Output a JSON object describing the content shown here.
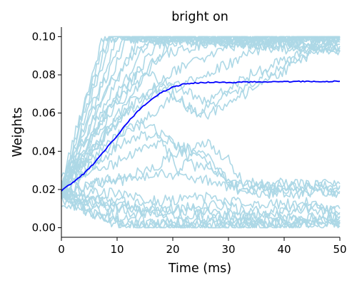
{
  "chart_data": {
    "type": "line",
    "title": "bright on",
    "xlabel": "Time (ms)",
    "ylabel": "Weights",
    "xlim": [
      0,
      50
    ],
    "ylim": [
      -0.005,
      0.105
    ],
    "xticks": [
      0,
      10,
      20,
      30,
      40,
      50
    ],
    "xtick_labels": [
      "0",
      "10",
      "20",
      "30",
      "40",
      "50"
    ],
    "yticks": [
      0.0,
      0.02,
      0.04,
      0.06,
      0.08,
      0.1
    ],
    "ytick_labels": [
      "0.00",
      "0.02",
      "0.04",
      "0.06",
      "0.08",
      "0.10"
    ],
    "grid": false,
    "colors": {
      "individual": "#add8e6",
      "mean": "#0000ff"
    },
    "mean_series": {
      "x": [
        0,
        2,
        4,
        6,
        8,
        10,
        12,
        14,
        16,
        18,
        20,
        22,
        24,
        26,
        28,
        30,
        32,
        34,
        36,
        38,
        40,
        42,
        44,
        46,
        48,
        50
      ],
      "values": [
        0.0195,
        0.0235,
        0.0282,
        0.0342,
        0.0412,
        0.0482,
        0.0555,
        0.0618,
        0.0668,
        0.0708,
        0.0735,
        0.0752,
        0.0758,
        0.076,
        0.0761,
        0.076,
        0.0762,
        0.0763,
        0.0763,
        0.0764,
        0.0764,
        0.0765,
        0.0765,
        0.0765,
        0.0766,
        0.0766
      ]
    },
    "individual_series": [
      {
        "x": [
          0,
          7.5,
          50
        ],
        "values": [
          0.024,
          0.1,
          0.1
        ]
      },
      {
        "x": [
          0,
          8,
          50
        ],
        "values": [
          0.022,
          0.1,
          0.098
        ]
      },
      {
        "x": [
          0,
          8.5,
          50
        ],
        "values": [
          0.021,
          0.1,
          0.096
        ]
      },
      {
        "x": [
          0,
          9,
          50
        ],
        "values": [
          0.02,
          0.1,
          0.094
        ]
      },
      {
        "x": [
          0,
          10,
          50
        ],
        "values": [
          0.019,
          0.1,
          0.092
        ]
      },
      {
        "x": [
          0,
          11,
          50
        ],
        "values": [
          0.021,
          0.1,
          0.1
        ]
      },
      {
        "x": [
          0,
          12,
          50
        ],
        "values": [
          0.018,
          0.1,
          0.095
        ]
      },
      {
        "x": [
          0,
          14,
          50
        ],
        "values": [
          0.02,
          0.1,
          0.097
        ]
      },
      {
        "x": [
          0,
          16,
          50
        ],
        "values": [
          0.019,
          0.1,
          0.093
        ]
      },
      {
        "x": [
          0,
          18,
          50
        ],
        "values": [
          0.022,
          0.1,
          0.099
        ]
      },
      {
        "x": [
          0,
          20,
          50
        ],
        "values": [
          0.017,
          0.1,
          0.1
        ]
      },
      {
        "x": [
          0,
          8,
          14,
          24,
          50
        ],
        "values": [
          0.021,
          0.072,
          0.095,
          0.1,
          0.1
        ]
      },
      {
        "x": [
          0,
          10,
          18,
          30,
          50
        ],
        "values": [
          0.02,
          0.07,
          0.09,
          0.1,
          0.1
        ]
      },
      {
        "x": [
          0,
          12,
          22,
          35,
          50
        ],
        "values": [
          0.019,
          0.065,
          0.085,
          0.1,
          0.1
        ]
      },
      {
        "x": [
          0,
          14,
          26,
          40,
          50
        ],
        "values": [
          0.022,
          0.068,
          0.08,
          0.1,
          0.1
        ]
      },
      {
        "x": [
          0,
          8,
          16,
          26,
          34,
          50
        ],
        "values": [
          0.02,
          0.06,
          0.08,
          0.066,
          0.08,
          0.1
        ]
      },
      {
        "x": [
          0,
          10,
          18,
          24,
          30,
          50
        ],
        "values": [
          0.021,
          0.055,
          0.075,
          0.06,
          0.07,
          0.1
        ]
      },
      {
        "x": [
          0,
          12,
          20,
          26,
          50
        ],
        "values": [
          0.018,
          0.05,
          0.068,
          0.058,
          0.1
        ]
      },
      {
        "x": [
          0,
          10,
          16,
          21,
          24,
          28,
          32,
          50
        ],
        "values": [
          0.019,
          0.05,
          0.056,
          0.03,
          0.04,
          0.028,
          0.022,
          0.022
        ]
      },
      {
        "x": [
          0,
          12,
          18,
          22,
          26,
          30,
          33,
          50
        ],
        "values": [
          0.02,
          0.046,
          0.05,
          0.04,
          0.044,
          0.036,
          0.021,
          0.021
        ]
      },
      {
        "x": [
          0,
          14,
          20,
          24,
          28,
          32,
          50
        ],
        "values": [
          0.021,
          0.04,
          0.046,
          0.032,
          0.03,
          0.019,
          0.019
        ]
      },
      {
        "x": [
          0,
          16,
          22,
          27,
          30,
          34,
          50
        ],
        "values": [
          0.019,
          0.03,
          0.042,
          0.036,
          0.024,
          0.018,
          0.018
        ]
      },
      {
        "x": [
          0,
          18,
          24,
          30,
          33,
          50
        ],
        "values": [
          0.02,
          0.028,
          0.026,
          0.022,
          0.023,
          0.023
        ]
      },
      {
        "x": [
          0,
          6,
          12,
          20,
          30,
          40,
          50
        ],
        "values": [
          0.02,
          0.01,
          0.004,
          0.002,
          0.003,
          0.004,
          0.006
        ]
      },
      {
        "x": [
          0,
          5,
          10,
          20,
          30,
          40,
          50
        ],
        "values": [
          0.018,
          0.008,
          0.002,
          0.001,
          0.002,
          0.003,
          0.004
        ]
      },
      {
        "x": [
          0,
          7,
          14,
          22,
          32,
          42,
          50
        ],
        "values": [
          0.016,
          0.006,
          0.0,
          0.0,
          0.001,
          0.002,
          0.003
        ]
      },
      {
        "x": [
          0,
          8,
          16,
          24,
          34,
          44,
          50
        ],
        "values": [
          0.014,
          0.004,
          0.0,
          0.0,
          0.0,
          0.001,
          0.002
        ]
      },
      {
        "x": [
          0,
          10,
          18,
          26,
          36,
          46,
          50
        ],
        "values": [
          0.017,
          0.014,
          0.01,
          0.012,
          0.008,
          0.011,
          0.007
        ]
      },
      {
        "x": [
          0,
          9,
          17,
          25,
          35,
          45,
          50
        ],
        "values": [
          0.019,
          0.018,
          0.014,
          0.016,
          0.012,
          0.013,
          0.01
        ]
      },
      {
        "x": [
          0,
          12,
          20,
          28,
          38,
          50
        ],
        "values": [
          0.015,
          0.01,
          0.006,
          0.008,
          0.004,
          0.005
        ]
      },
      {
        "x": [
          0,
          11,
          21,
          29,
          39,
          50
        ],
        "values": [
          0.016,
          0.012,
          0.003,
          0.005,
          0.002,
          0.001
        ]
      },
      {
        "x": [
          0,
          13,
          23,
          33,
          43,
          50
        ],
        "values": [
          0.018,
          0.008,
          0.009,
          0.006,
          0.01,
          0.008
        ]
      }
    ]
  }
}
